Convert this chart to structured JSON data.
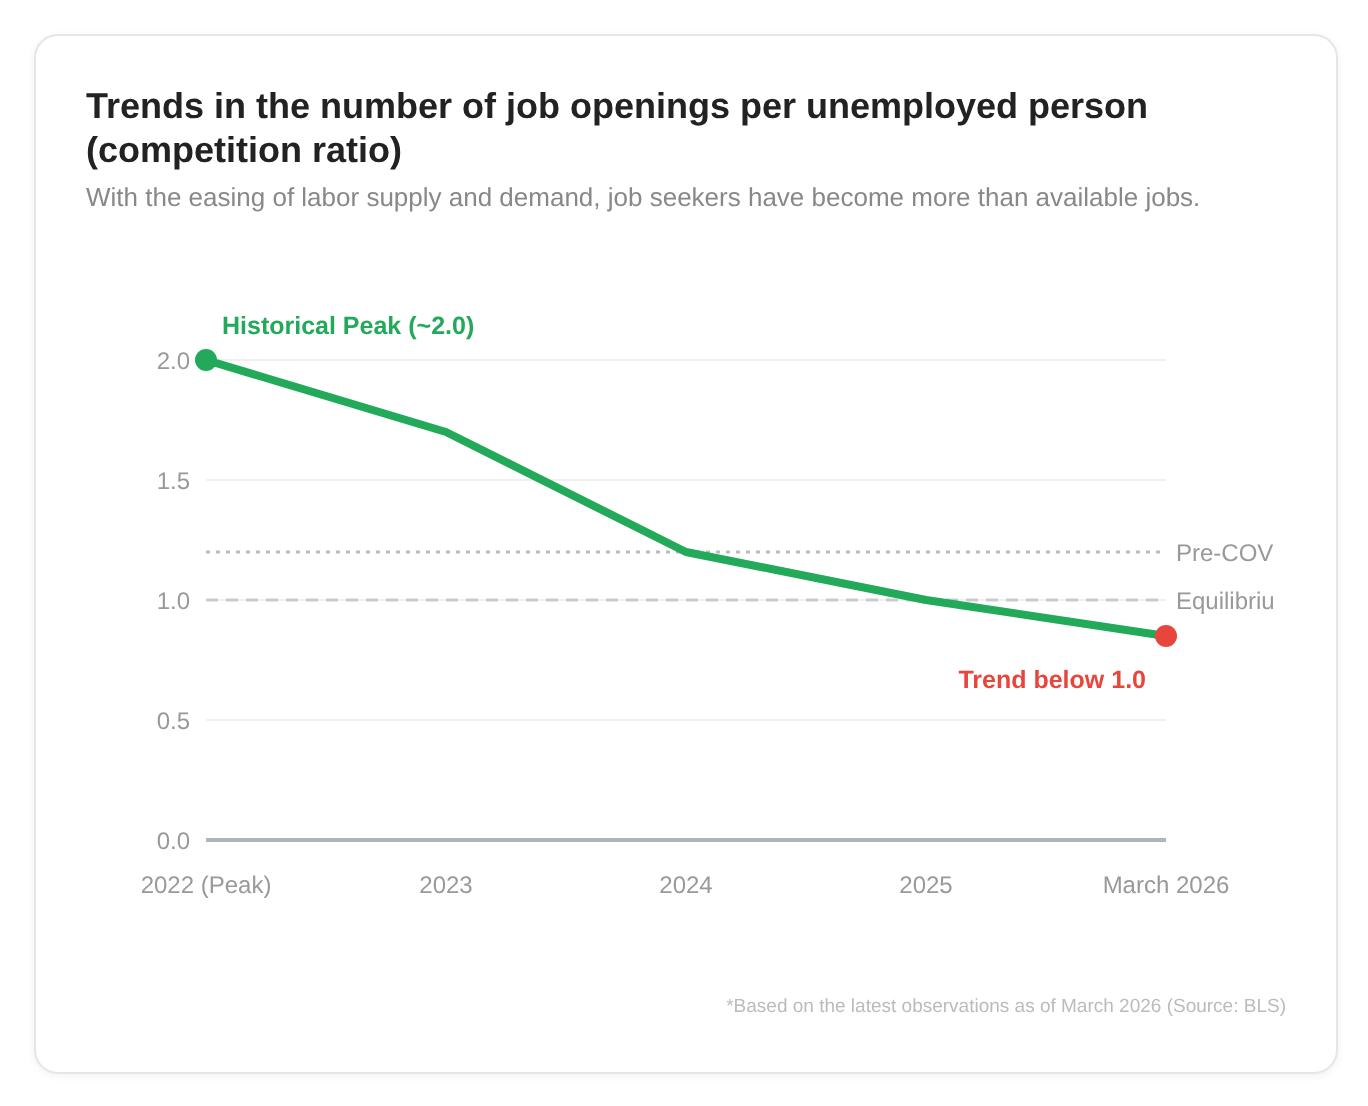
{
  "chart_data": {
    "type": "line",
    "title": "Trends in the number of job openings per unemployed person (competition ratio)",
    "subtitle": "With the easing of labor supply and demand, job seekers have become more than available jobs.",
    "categories": [
      "2022 (Peak)",
      "2023",
      "2024",
      "2025",
      "March 2026"
    ],
    "series": [
      {
        "color": "#22a95a",
        "values": [
          2.0,
          1.7,
          1.2,
          1.0,
          0.85
        ],
        "colors": [
          "#22a95a",
          null,
          null,
          null,
          "#e8453c"
        ]
      }
    ],
    "ylim": [
      0,
      2.0
    ],
    "yticks": [
      {
        "value": 0,
        "label": "0.0"
      },
      {
        "value": 0.5,
        "label": "0.5"
      },
      {
        "value": 1,
        "label": "1.0"
      },
      {
        "value": 1.5,
        "label": "1.5"
      },
      {
        "value": 2,
        "label": "2.0"
      }
    ],
    "grid": "y",
    "marker": "none",
    "line_style": "solid",
    "ref_lines": [
      {
        "axis": "y",
        "value": 1.2,
        "label": "Pre-COV",
        "line_style": "dotted",
        "color": "#bbbbbb"
      },
      {
        "axis": "y",
        "value": 1.0,
        "label": "Equilibriu",
        "line_style": "dashed",
        "color": "#cccccc"
      }
    ],
    "annotations": [
      {
        "text": "Historical Peak (~2.0)",
        "x": "2022 (Peak)",
        "y": 2.0
      },
      {
        "text": "Trend below 1.0",
        "x": "March 2026",
        "y": 0.85
      },
      "*Based on the latest observations as of March 2026 (Source: BLS)"
    ]
  }
}
